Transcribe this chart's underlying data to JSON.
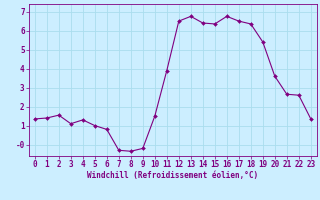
{
  "hours": [
    0,
    1,
    2,
    3,
    4,
    5,
    6,
    7,
    8,
    9,
    10,
    11,
    12,
    13,
    14,
    15,
    16,
    17,
    18,
    19,
    20,
    21,
    22,
    23
  ],
  "values": [
    1.35,
    1.4,
    1.55,
    1.1,
    1.3,
    1.0,
    0.8,
    -0.3,
    -0.35,
    -0.2,
    1.5,
    3.9,
    6.5,
    6.75,
    6.4,
    6.35,
    6.75,
    6.5,
    6.35,
    5.4,
    3.6,
    2.65,
    2.6,
    1.35
  ],
  "line_color": "#800080",
  "marker_color": "#800080",
  "bg_color": "#cceeff",
  "grid_color": "#aaddee",
  "xlabel": "Windchill (Refroidissement éolien,°C)",
  "ylabel_ticks": [
    "-0",
    "1",
    "2",
    "3",
    "4",
    "5",
    "6",
    "7"
  ],
  "ytick_vals": [
    0,
    1,
    2,
    3,
    4,
    5,
    6,
    7
  ],
  "ylim": [
    -0.6,
    7.4
  ],
  "xlim": [
    -0.5,
    23.5
  ],
  "axis_fontsize": 5.5,
  "tick_fontsize": 5.5
}
